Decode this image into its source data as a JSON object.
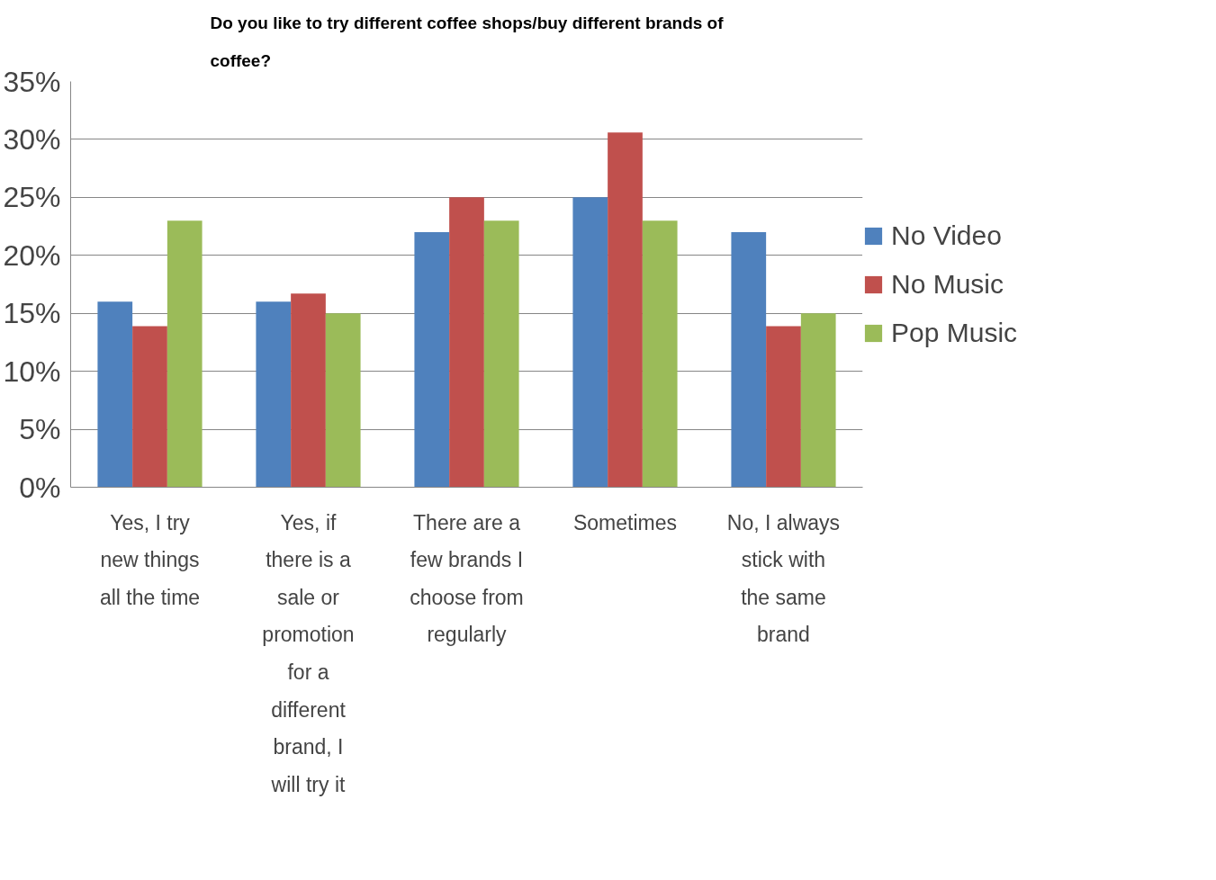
{
  "chart_data": {
    "type": "bar",
    "title": "Do you like to try different coffee shops/buy different brands of coffee?",
    "categories": [
      "Yes, I try new things all the time",
      "Yes, if there is a sale or promotion for a different brand, I will try it",
      "There are a few brands I choose from regularly",
      "Sometimes",
      "No, I always stick with the same brand"
    ],
    "series": [
      {
        "name": "No Video",
        "color": "#4f81bd",
        "values": [
          16,
          16,
          22,
          25,
          22
        ]
      },
      {
        "name": "No Music",
        "color": "#c0504d",
        "values": [
          13.9,
          16.7,
          25,
          30.6,
          13.9
        ]
      },
      {
        "name": "Pop Music",
        "color": "#9bbb59",
        "values": [
          23,
          15,
          23,
          23,
          15
        ]
      }
    ],
    "ylim": [
      0,
      35
    ],
    "yticks": [
      {
        "value": 0,
        "label": "0%"
      },
      {
        "value": 5,
        "label": "5%"
      },
      {
        "value": 10,
        "label": "10%"
      },
      {
        "value": 15,
        "label": "15%"
      },
      {
        "value": 20,
        "label": "20%"
      },
      {
        "value": 25,
        "label": "25%"
      },
      {
        "value": 30,
        "label": "30%"
      },
      {
        "value": 35,
        "label": "35%"
      }
    ],
    "grid": "y",
    "legend": "right"
  }
}
